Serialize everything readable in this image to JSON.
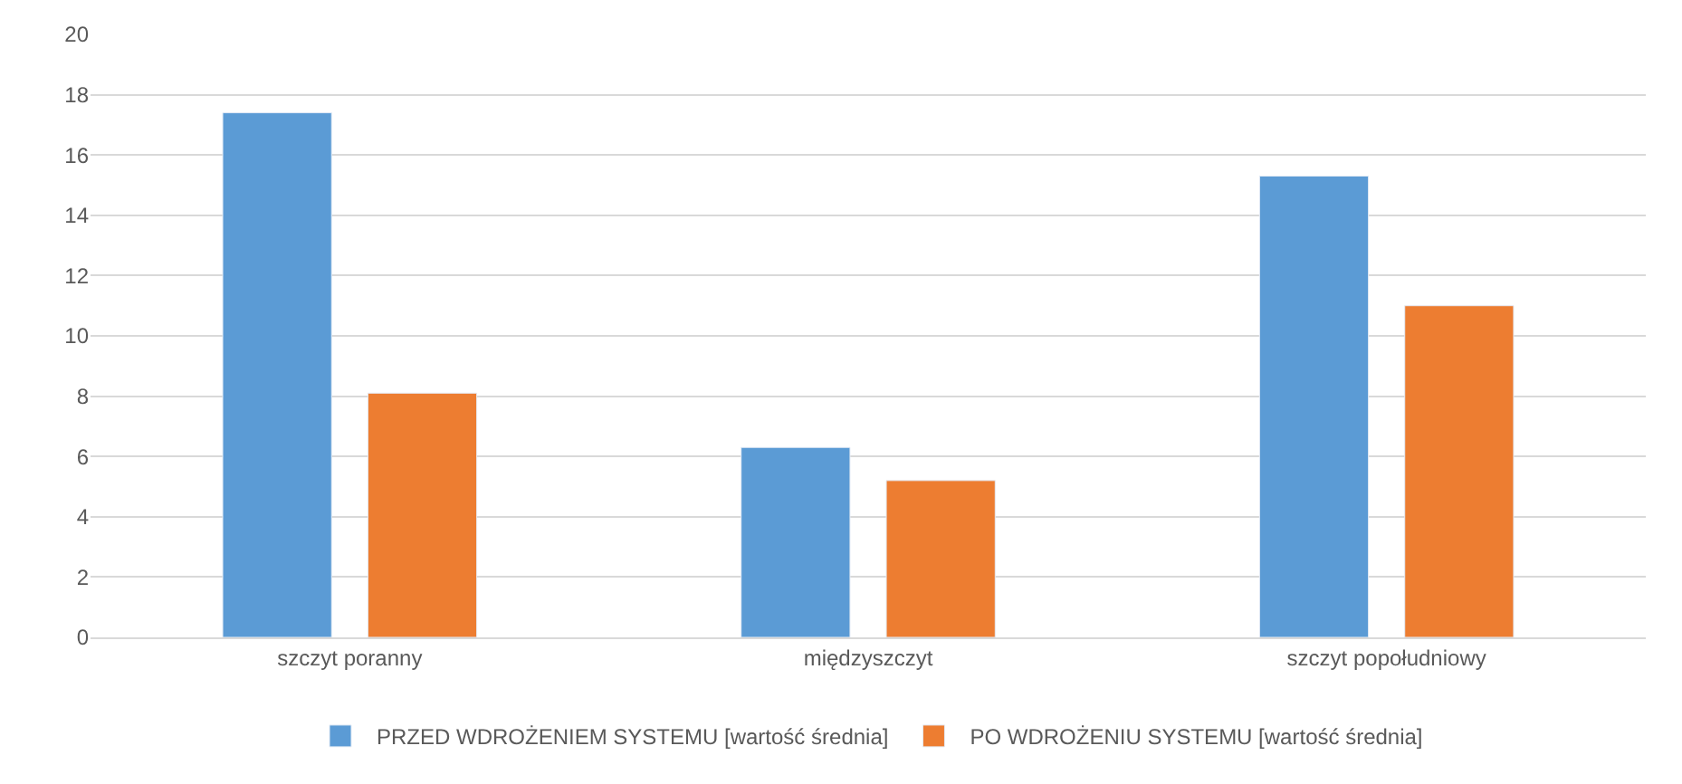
{
  "chart_data": {
    "type": "bar",
    "categories": [
      "szczyt poranny",
      "międzyszczyt",
      "szczyt popołudniowy"
    ],
    "series": [
      {
        "name": "PRZED WDROŻENIEM SYSTEMU [wartość średnia]",
        "color": "#5b9bd5",
        "values": [
          17.4,
          6.3,
          15.3
        ]
      },
      {
        "name": "PO WDROŻENIU SYSTEMU [wartość średnia]",
        "color": "#ed7d31",
        "values": [
          8.1,
          5.2,
          11.0
        ]
      }
    ],
    "ylim": [
      0,
      20
    ],
    "yticks": [
      0,
      2,
      4,
      6,
      8,
      10,
      12,
      14,
      16,
      18,
      20
    ],
    "grid": "y",
    "legend": "bottom"
  }
}
